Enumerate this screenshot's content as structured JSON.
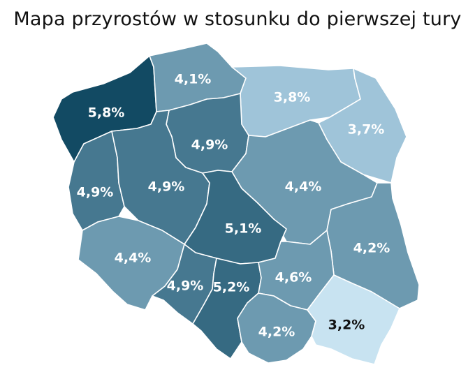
{
  "title": "Mapa przyrostów w stosunku do pierwszej tury",
  "colors": {
    "darkest": "#124a63",
    "dark": "#366a82",
    "medium_dark": "#467890",
    "medium": "#6d9ab0",
    "light": "#9fc4d9",
    "lightest": "#c8e3f1",
    "label_light": "#ffffff",
    "label_dark": "#111111"
  },
  "regions": [
    {
      "name": "zachodniopomorskie",
      "value": "5,8%"
    },
    {
      "name": "pomorskie",
      "value": "4,1%"
    },
    {
      "name": "warminsko-mazurskie",
      "value": "3,8%"
    },
    {
      "name": "podlaskie",
      "value": "3,7%"
    },
    {
      "name": "kujawsko-pomorskie",
      "value": "4,9%"
    },
    {
      "name": "lubuskie",
      "value": "4,9%"
    },
    {
      "name": "wielkopolskie",
      "value": "4,9%"
    },
    {
      "name": "mazowieckie",
      "value": "4,4%"
    },
    {
      "name": "lodzkie",
      "value": "5,1%"
    },
    {
      "name": "lubelskie",
      "value": "4,2%"
    },
    {
      "name": "dolnoslaskie",
      "value": "4,4%"
    },
    {
      "name": "opolskie",
      "value": "4,9%"
    },
    {
      "name": "slaskie",
      "value": "5,2%"
    },
    {
      "name": "swietokrzyskie",
      "value": "4,6%"
    },
    {
      "name": "malopolskie",
      "value": "4,2%"
    },
    {
      "name": "podkarpackie",
      "value": "3,2%"
    }
  ]
}
